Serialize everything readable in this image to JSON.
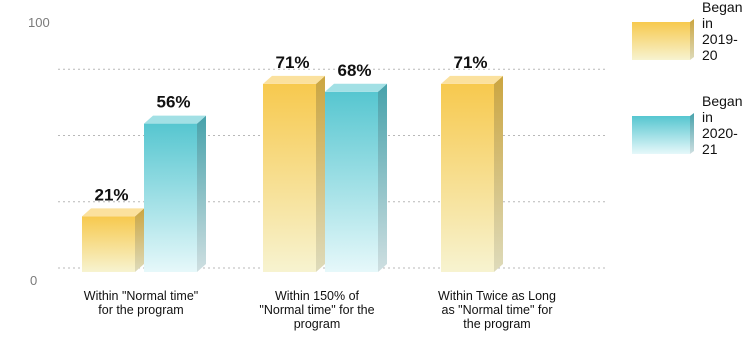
{
  "chart_data": {
    "type": "bar",
    "categories": [
      [
        "Within \"Normal time\"",
        "for the program"
      ],
      [
        "Within 150% of",
        "\"Normal time\" for the",
        "program"
      ],
      [
        "Within Twice as Long",
        "as \"Normal time\" for",
        "the program"
      ]
    ],
    "series": [
      {
        "name": [
          "Began",
          "in",
          "2019-",
          "20"
        ],
        "values": [
          21,
          71,
          71
        ],
        "labels": [
          "21%",
          "71%",
          "71%"
        ],
        "color_top": "#f7c94e",
        "color_bottom": "#f7f3d0"
      },
      {
        "name": [
          "Began",
          "in",
          "2020-",
          "21"
        ],
        "values": [
          56,
          68,
          null
        ],
        "labels": [
          "56%",
          "68%",
          ""
        ],
        "color_top": "#56c6d0",
        "color_bottom": "#e6f8fa"
      }
    ],
    "yticks": [
      "0",
      "100"
    ],
    "ylim": [
      0,
      100
    ],
    "gridlines": [
      25,
      50,
      75
    ],
    "grid": true,
    "legend": "right"
  }
}
